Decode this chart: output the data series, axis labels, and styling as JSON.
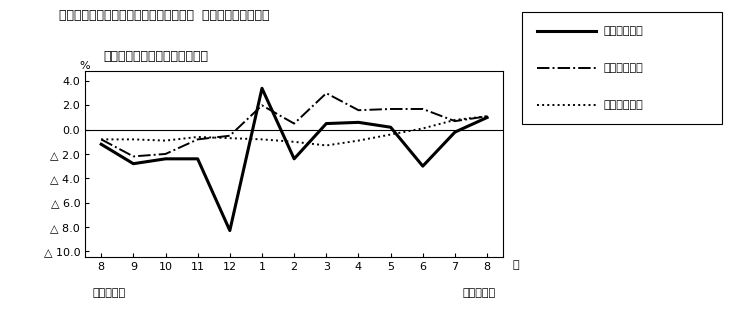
{
  "title_line1": "第４図　賃金、労働時間、常用雇用指数  対前年同月比の推移",
  "title_line2": "（規模５人以上　調査産業計）",
  "x_labels": [
    "8",
    "9",
    "10",
    "11",
    "12",
    "1",
    "2",
    "3",
    "4",
    "5",
    "6",
    "7",
    "8"
  ],
  "x_bottom_label_left": "平成２１年",
  "x_bottom_label_right": "平成２２年",
  "month_label": "月",
  "ylabel": "%",
  "ylim": [
    -10.5,
    4.8
  ],
  "yticks": [
    4.0,
    2.0,
    0.0,
    -2.0,
    -4.0,
    -6.0,
    -8.0,
    -10.0
  ],
  "ytick_labels": [
    "4.0",
    "2.0",
    "0.0",
    "△ 2.0",
    "△ 4.0",
    "△ 6.0",
    "△ 8.0",
    "△ 10.0"
  ],
  "series_solid": [
    -1.2,
    -2.8,
    -2.4,
    -2.4,
    -8.3,
    3.4,
    -2.4,
    0.5,
    0.6,
    0.2,
    -3.0,
    -0.2,
    1.0
  ],
  "series_dashdot": [
    -0.8,
    -2.2,
    -2.0,
    -0.8,
    -0.5,
    2.0,
    0.5,
    3.0,
    1.6,
    1.7,
    1.7,
    0.7,
    1.1
  ],
  "series_dotted": [
    -0.8,
    -0.8,
    -0.9,
    -0.6,
    -0.7,
    -0.8,
    -1.0,
    -1.3,
    -0.9,
    -0.4,
    0.1,
    0.8,
    1.1
  ],
  "legend_labels": [
    "現金給与総額",
    "総実労働時間",
    "常用雇用指数"
  ],
  "bg_color": "white"
}
